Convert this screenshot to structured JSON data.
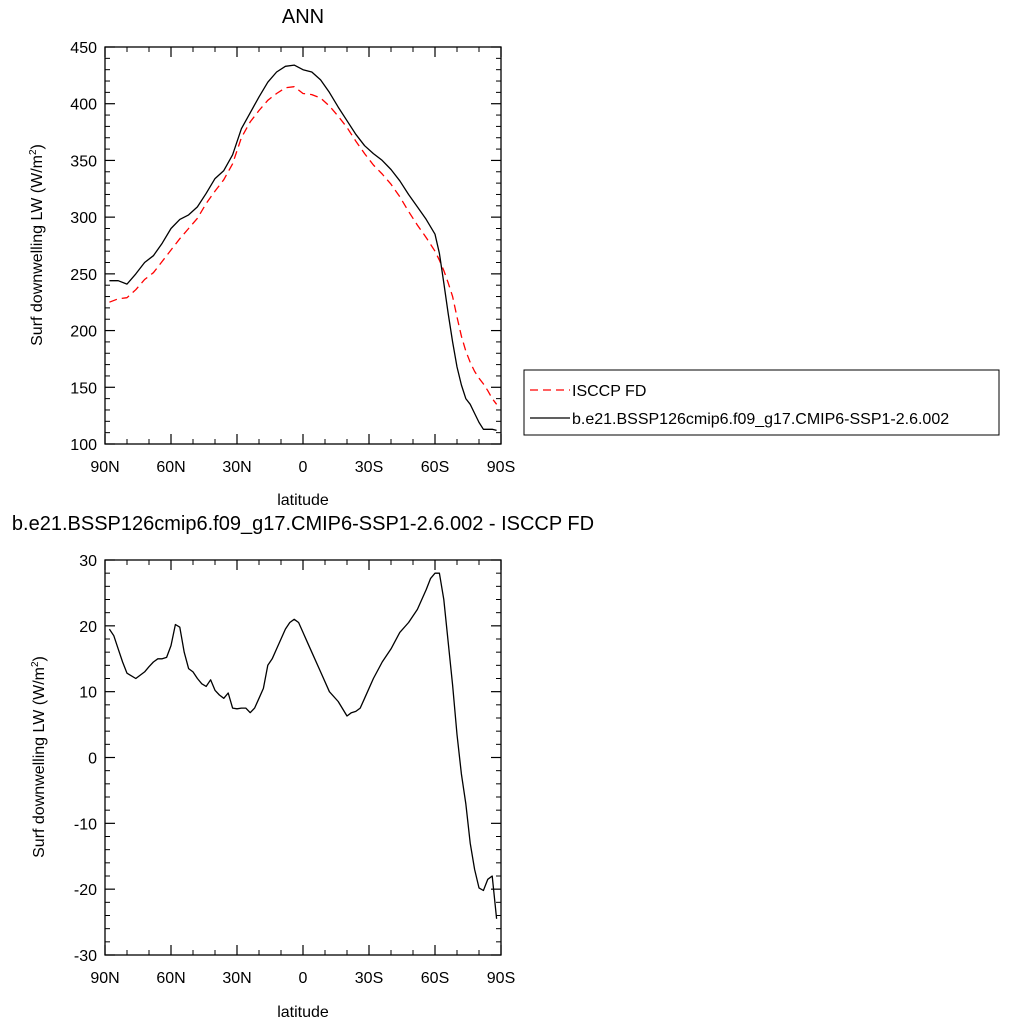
{
  "chart_data": [
    {
      "type": "line",
      "title": "ANN",
      "xlabel": "latitude",
      "ylabel": "Surf downwelling LW (W/m²)",
      "ylabel_parts": [
        "Surf downwelling LW (W/m",
        "2",
        ")"
      ],
      "xlim": [
        90,
        -90
      ],
      "ylim": [
        100,
        450
      ],
      "xticks": [
        90,
        60,
        30,
        0,
        -30,
        -60,
        -90
      ],
      "xtick_labels": [
        "90N",
        "60N",
        "30N",
        "0",
        "30S",
        "60S",
        "90S"
      ],
      "yticks": [
        100,
        150,
        200,
        250,
        300,
        350,
        400,
        450
      ],
      "ytick_labels": [
        "100",
        "150",
        "200",
        "250",
        "300",
        "350",
        "400",
        "450"
      ],
      "legend_position": "right",
      "series": [
        {
          "name": "ISCCP FD",
          "color": "#ff0000",
          "dash": "dashed",
          "x": [
            88,
            84,
            80,
            76,
            72,
            68,
            64,
            60,
            56,
            52,
            48,
            44,
            40,
            36,
            32,
            28,
            24,
            20,
            16,
            12,
            8,
            4,
            0,
            -4,
            -8,
            -12,
            -16,
            -20,
            -24,
            -28,
            -32,
            -36,
            -40,
            -44,
            -48,
            -52,
            -56,
            -60,
            -62,
            -64,
            -66,
            -68,
            -70,
            -72,
            -74,
            -76,
            -78,
            -80,
            -82,
            -84,
            -86,
            -88
          ],
          "y": [
            225,
            228,
            229,
            236,
            245,
            251,
            261,
            271,
            281,
            290,
            299,
            312,
            323,
            333,
            347,
            370,
            384,
            394,
            403,
            409,
            414,
            415,
            409,
            408,
            405,
            398,
            389,
            379,
            367,
            356,
            346,
            338,
            329,
            318,
            305,
            293,
            282,
            270,
            262,
            253,
            242,
            230,
            212,
            195,
            182,
            172,
            164,
            158,
            153,
            147,
            140,
            135
          ]
        },
        {
          "name": "b.e21.BSSP126cmip6.f09_g17.CMIP6-SSP1-2.6.002",
          "color": "#000000",
          "dash": "solid",
          "x": [
            88,
            84,
            80,
            76,
            72,
            68,
            64,
            60,
            56,
            52,
            48,
            44,
            40,
            36,
            32,
            28,
            24,
            20,
            16,
            12,
            8,
            4,
            0,
            -4,
            -8,
            -12,
            -16,
            -20,
            -24,
            -28,
            -32,
            -36,
            -40,
            -44,
            -48,
            -52,
            -56,
            -60,
            -62,
            -64,
            -66,
            -68,
            -70,
            -72,
            -74,
            -76,
            -78,
            -80,
            -82,
            -84,
            -86,
            -88
          ],
          "y": [
            244,
            244,
            241,
            250,
            260,
            266,
            277,
            290,
            298,
            302,
            309,
            321,
            334,
            341,
            355,
            378,
            392,
            406,
            419,
            428,
            433,
            434,
            430,
            428,
            421,
            410,
            397,
            385,
            373,
            363,
            356,
            350,
            342,
            332,
            320,
            309,
            298,
            285,
            268,
            242,
            215,
            190,
            168,
            152,
            140,
            135,
            127,
            119,
            113,
            113,
            113,
            112
          ]
        }
      ]
    },
    {
      "type": "line",
      "title": "b.e21.BSSP126cmip6.f09_g17.CMIP6-SSP1-2.6.002 - ISCCP FD",
      "xlabel": "latitude",
      "ylabel": "Surf downwelling LW (W/m²)",
      "ylabel_parts": [
        "Surf downwelling LW (W/m",
        "2",
        ")"
      ],
      "xlim": [
        90,
        -90
      ],
      "ylim": [
        -30,
        30
      ],
      "xticks": [
        90,
        60,
        30,
        0,
        -30,
        -60,
        -90
      ],
      "xtick_labels": [
        "90N",
        "60N",
        "30N",
        "0",
        "30S",
        "60S",
        "90S"
      ],
      "yticks": [
        -30,
        -20,
        -10,
        0,
        10,
        20,
        30
      ],
      "ytick_labels": [
        "-30",
        "-20",
        "-10",
        "0",
        "10",
        "20",
        "30"
      ],
      "series": [
        {
          "color": "#000000",
          "dash": "solid",
          "x": [
            88,
            86,
            84,
            82,
            80,
            76,
            72,
            70,
            68,
            66,
            64,
            62,
            60,
            58,
            56,
            54,
            52,
            50,
            48,
            46,
            44,
            42,
            40,
            38,
            36,
            34,
            32,
            30,
            28,
            26,
            24,
            22,
            20,
            18,
            16,
            14,
            12,
            10,
            8,
            6,
            4,
            2,
            0,
            -2,
            -4,
            -8,
            -12,
            -16,
            -20,
            -22,
            -24,
            -26,
            -28,
            -32,
            -36,
            -40,
            -44,
            -48,
            -52,
            -56,
            -58,
            -60,
            -62,
            -64,
            -66,
            -68,
            -70,
            -72,
            -74,
            -76,
            -78,
            -80,
            -82,
            -84,
            -86,
            -88
          ],
          "y": [
            19.5,
            18.5,
            16.5,
            14.5,
            12.8,
            12.0,
            13.0,
            13.8,
            14.5,
            15.0,
            15.0,
            15.2,
            17.0,
            20.2,
            19.8,
            16.0,
            13.5,
            13.0,
            12.0,
            11.2,
            10.8,
            11.8,
            10.2,
            9.5,
            9.0,
            9.8,
            7.5,
            7.4,
            7.5,
            7.5,
            6.8,
            7.5,
            9.0,
            10.5,
            14.0,
            15.0,
            16.5,
            18.0,
            19.5,
            20.5,
            21.0,
            20.5,
            19.0,
            17.5,
            16.0,
            13.0,
            10.0,
            8.5,
            6.3,
            6.8,
            7.0,
            7.5,
            9.0,
            12.0,
            14.5,
            16.5,
            19.0,
            20.5,
            22.5,
            25.5,
            27.2,
            28.0,
            28.0,
            24.0,
            17.5,
            11.0,
            3.5,
            -2.5,
            -7.0,
            -13.0,
            -17.0,
            -19.8,
            -20.2,
            -18.5,
            -18.0,
            -24.5
          ]
        }
      ]
    }
  ]
}
